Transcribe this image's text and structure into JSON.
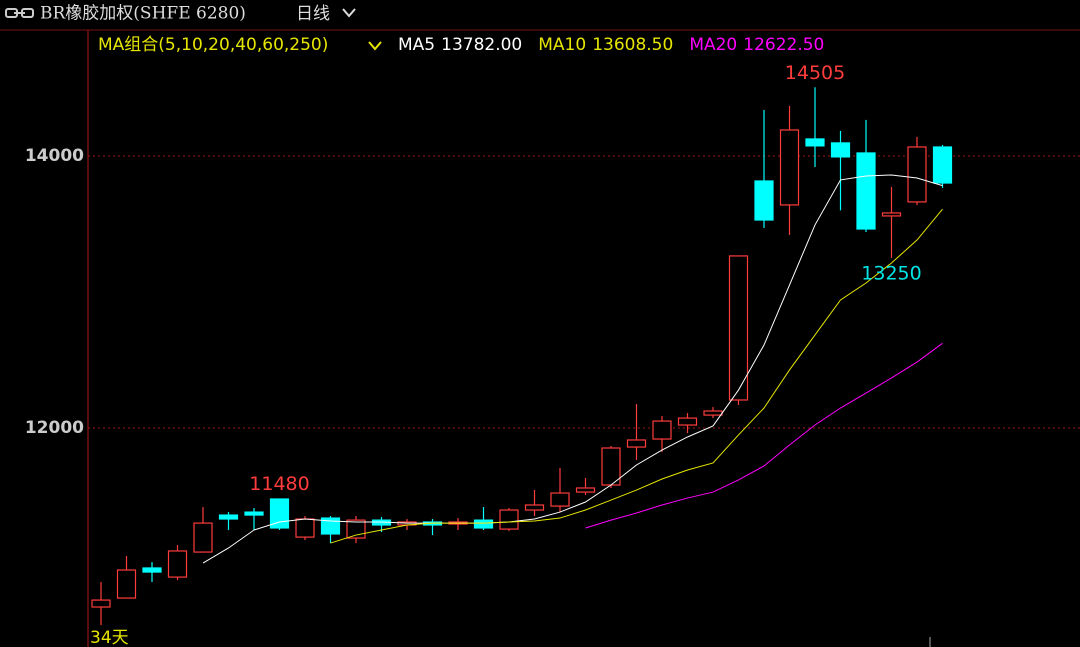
{
  "chart_data": {
    "type": "candlestick",
    "title": "BR橡胶加权(SHFE 6280)",
    "period": "日线",
    "ma_group": "MA组合(5,10,20,40,60,250)",
    "count_label": "34天",
    "open": [
      10684,
      10750,
      10971,
      10904,
      11088,
      11360,
      11382,
      11478,
      11198,
      11338,
      11191,
      11323,
      11287,
      11309,
      11294,
      11323,
      11257,
      11397,
      11426,
      11529,
      11581,
      11860,
      11919,
      12022,
      12095,
      12206,
      13816,
      13640,
      14125,
      14096,
      14022,
      13559,
      13662,
      14066
    ],
    "high": [
      10868,
      11059,
      11015,
      11140,
      11419,
      11382,
      11412,
      11480,
      11353,
      11353,
      11353,
      11346,
      11331,
      11331,
      11338,
      11419,
      11412,
      11544,
      11706,
      11632,
      11868,
      12176,
      12088,
      12110,
      12154,
      13265,
      14338,
      14368,
      14505,
      14184,
      14265,
      13772,
      14140,
      14081
    ],
    "low": [
      10551,
      10750,
      10868,
      10882,
      11088,
      11250,
      11250,
      11250,
      11176,
      11154,
      11154,
      11235,
      11250,
      11213,
      11250,
      11250,
      11243,
      11353,
      11382,
      11507,
      11559,
      11765,
      11824,
      11963,
      12073,
      12169,
      13471,
      13419,
      13919,
      13600,
      13441,
      13250,
      13640,
      13765
    ],
    "close": [
      10735,
      10956,
      10941,
      11096,
      11301,
      11331,
      11360,
      11265,
      11331,
      11221,
      11323,
      11287,
      11309,
      11287,
      11309,
      11265,
      11397,
      11434,
      11522,
      11559,
      11853,
      11912,
      12051,
      12073,
      12125,
      13265,
      13529,
      14191,
      14074,
      13993,
      13463,
      13581,
      14066,
      13801
    ],
    "up_color": "#ff3c3c",
    "down_color": "#00ffff",
    "series": [
      {
        "name": "MA5",
        "color": "#ffffff",
        "current": {
          "value": 13782,
          "label": "13782.00"
        },
        "values": [
          null,
          null,
          null,
          null,
          11007,
          11118,
          11250,
          11309,
          11331,
          11316,
          11309,
          11309,
          11301,
          11301,
          11301,
          11301,
          11309,
          11331,
          11382,
          11456,
          11581,
          11728,
          11838,
          11934,
          12015,
          12279,
          12610,
          13051,
          13493,
          13824,
          13853,
          13860,
          13838,
          13782
        ]
      },
      {
        "name": "MA10",
        "color": "#e6e600",
        "current": {
          "value": 13608.5,
          "label": "13608.50"
        },
        "values": [
          null,
          null,
          null,
          null,
          null,
          null,
          null,
          null,
          null,
          11154,
          11213,
          11250,
          11287,
          11301,
          11301,
          11301,
          11309,
          11316,
          11338,
          11397,
          11470,
          11544,
          11625,
          11691,
          11743,
          11949,
          12147,
          12427,
          12684,
          12941,
          13066,
          13213,
          13382,
          13608.5
        ]
      },
      {
        "name": "MA20",
        "color": "#ff00ff",
        "current": {
          "value": 12622.5,
          "label": "12622.50"
        },
        "values": [
          null,
          null,
          null,
          null,
          null,
          null,
          null,
          null,
          null,
          null,
          null,
          null,
          null,
          null,
          null,
          null,
          null,
          null,
          null,
          11265,
          11323,
          11375,
          11434,
          11485,
          11529,
          11618,
          11721,
          11875,
          12022,
          12147,
          12257,
          12368,
          12485,
          12622.5
        ]
      }
    ],
    "marked_points": [
      {
        "field": "high",
        "index": 7,
        "color": "#ff3c3c"
      },
      {
        "field": "high",
        "index": 28,
        "color": "#ff3c3c"
      },
      {
        "field": "low",
        "index": 31,
        "color": "#00e5e5"
      }
    ],
    "ylim": [
      10390,
      14926
    ],
    "yticks": [
      12000,
      14000
    ],
    "grid": true
  }
}
